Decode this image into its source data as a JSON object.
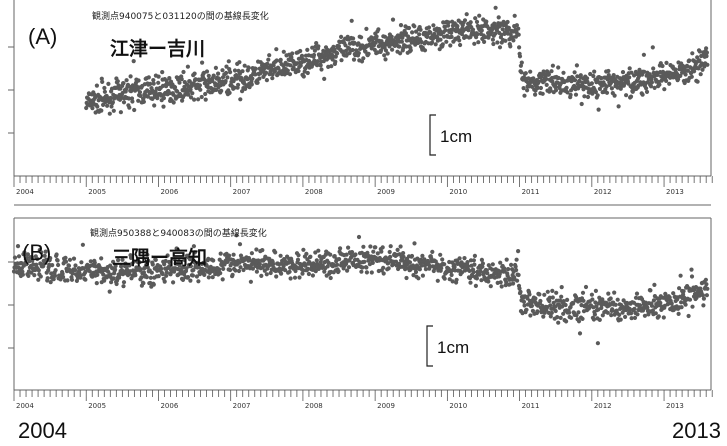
{
  "chart_data": [
    {
      "type": "scatter",
      "panel_label": "(A)",
      "title": "観測点940075と031120の間の基線長変化",
      "station_label": "江津ー吉川",
      "scale_label": "1cm",
      "x_ticks": [
        "2004",
        "2005",
        "2006",
        "2007",
        "2008",
        "2009",
        "2010",
        "2011",
        "2012",
        "2013"
      ],
      "xlim": [
        2004.0,
        2013.65
      ],
      "ylim": [
        -2.4,
        1.4
      ],
      "grid": false,
      "marker_color": "#5a5a5a",
      "series": [
        {
          "x": [
            2005.0,
            2005.5,
            2006.0,
            2006.5,
            2007.0,
            2007.5,
            2008.0,
            2008.5,
            2009.0,
            2009.5,
            2010.0,
            2010.5,
            2010.98,
            2011.02,
            2011.5,
            2012.0,
            2012.5,
            2013.0,
            2013.3,
            2013.6
          ],
          "y": [
            -0.85,
            -0.6,
            -0.55,
            -0.45,
            -0.35,
            -0.15,
            0.05,
            0.3,
            0.45,
            0.55,
            0.7,
            0.75,
            0.7,
            -0.3,
            -0.4,
            -0.45,
            -0.35,
            -0.3,
            -0.15,
            0.2
          ]
        }
      ]
    },
    {
      "type": "scatter",
      "panel_label": "(B)",
      "title": "観測点950388と940083の間の基線長変化",
      "station_label": "三隅ー高知",
      "scale_label": "1cm",
      "x_ticks": [
        "2004",
        "2005",
        "2006",
        "2007",
        "2008",
        "2009",
        "2010",
        "2011",
        "2012",
        "2013"
      ],
      "xlim": [
        2004.0,
        2013.65
      ],
      "ylim": [
        -2.2,
        1.6
      ],
      "grid": false,
      "marker_color": "#5a5a5a",
      "series": [
        {
          "x": [
            2004.0,
            2004.5,
            2005.0,
            2005.5,
            2006.0,
            2006.5,
            2007.0,
            2007.5,
            2008.0,
            2008.5,
            2009.0,
            2009.5,
            2010.0,
            2010.5,
            2010.98,
            2011.02,
            2011.5,
            2012.0,
            2012.5,
            2013.0,
            2013.3,
            2013.6
          ],
          "y": [
            0.6,
            0.5,
            0.45,
            0.4,
            0.45,
            0.5,
            0.55,
            0.6,
            0.55,
            0.65,
            0.7,
            0.65,
            0.5,
            0.4,
            0.35,
            -0.25,
            -0.35,
            -0.4,
            -0.4,
            -0.3,
            -0.15,
            -0.05
          ]
        }
      ]
    }
  ],
  "footer": {
    "start_year": "2004",
    "end_year": "2013"
  }
}
